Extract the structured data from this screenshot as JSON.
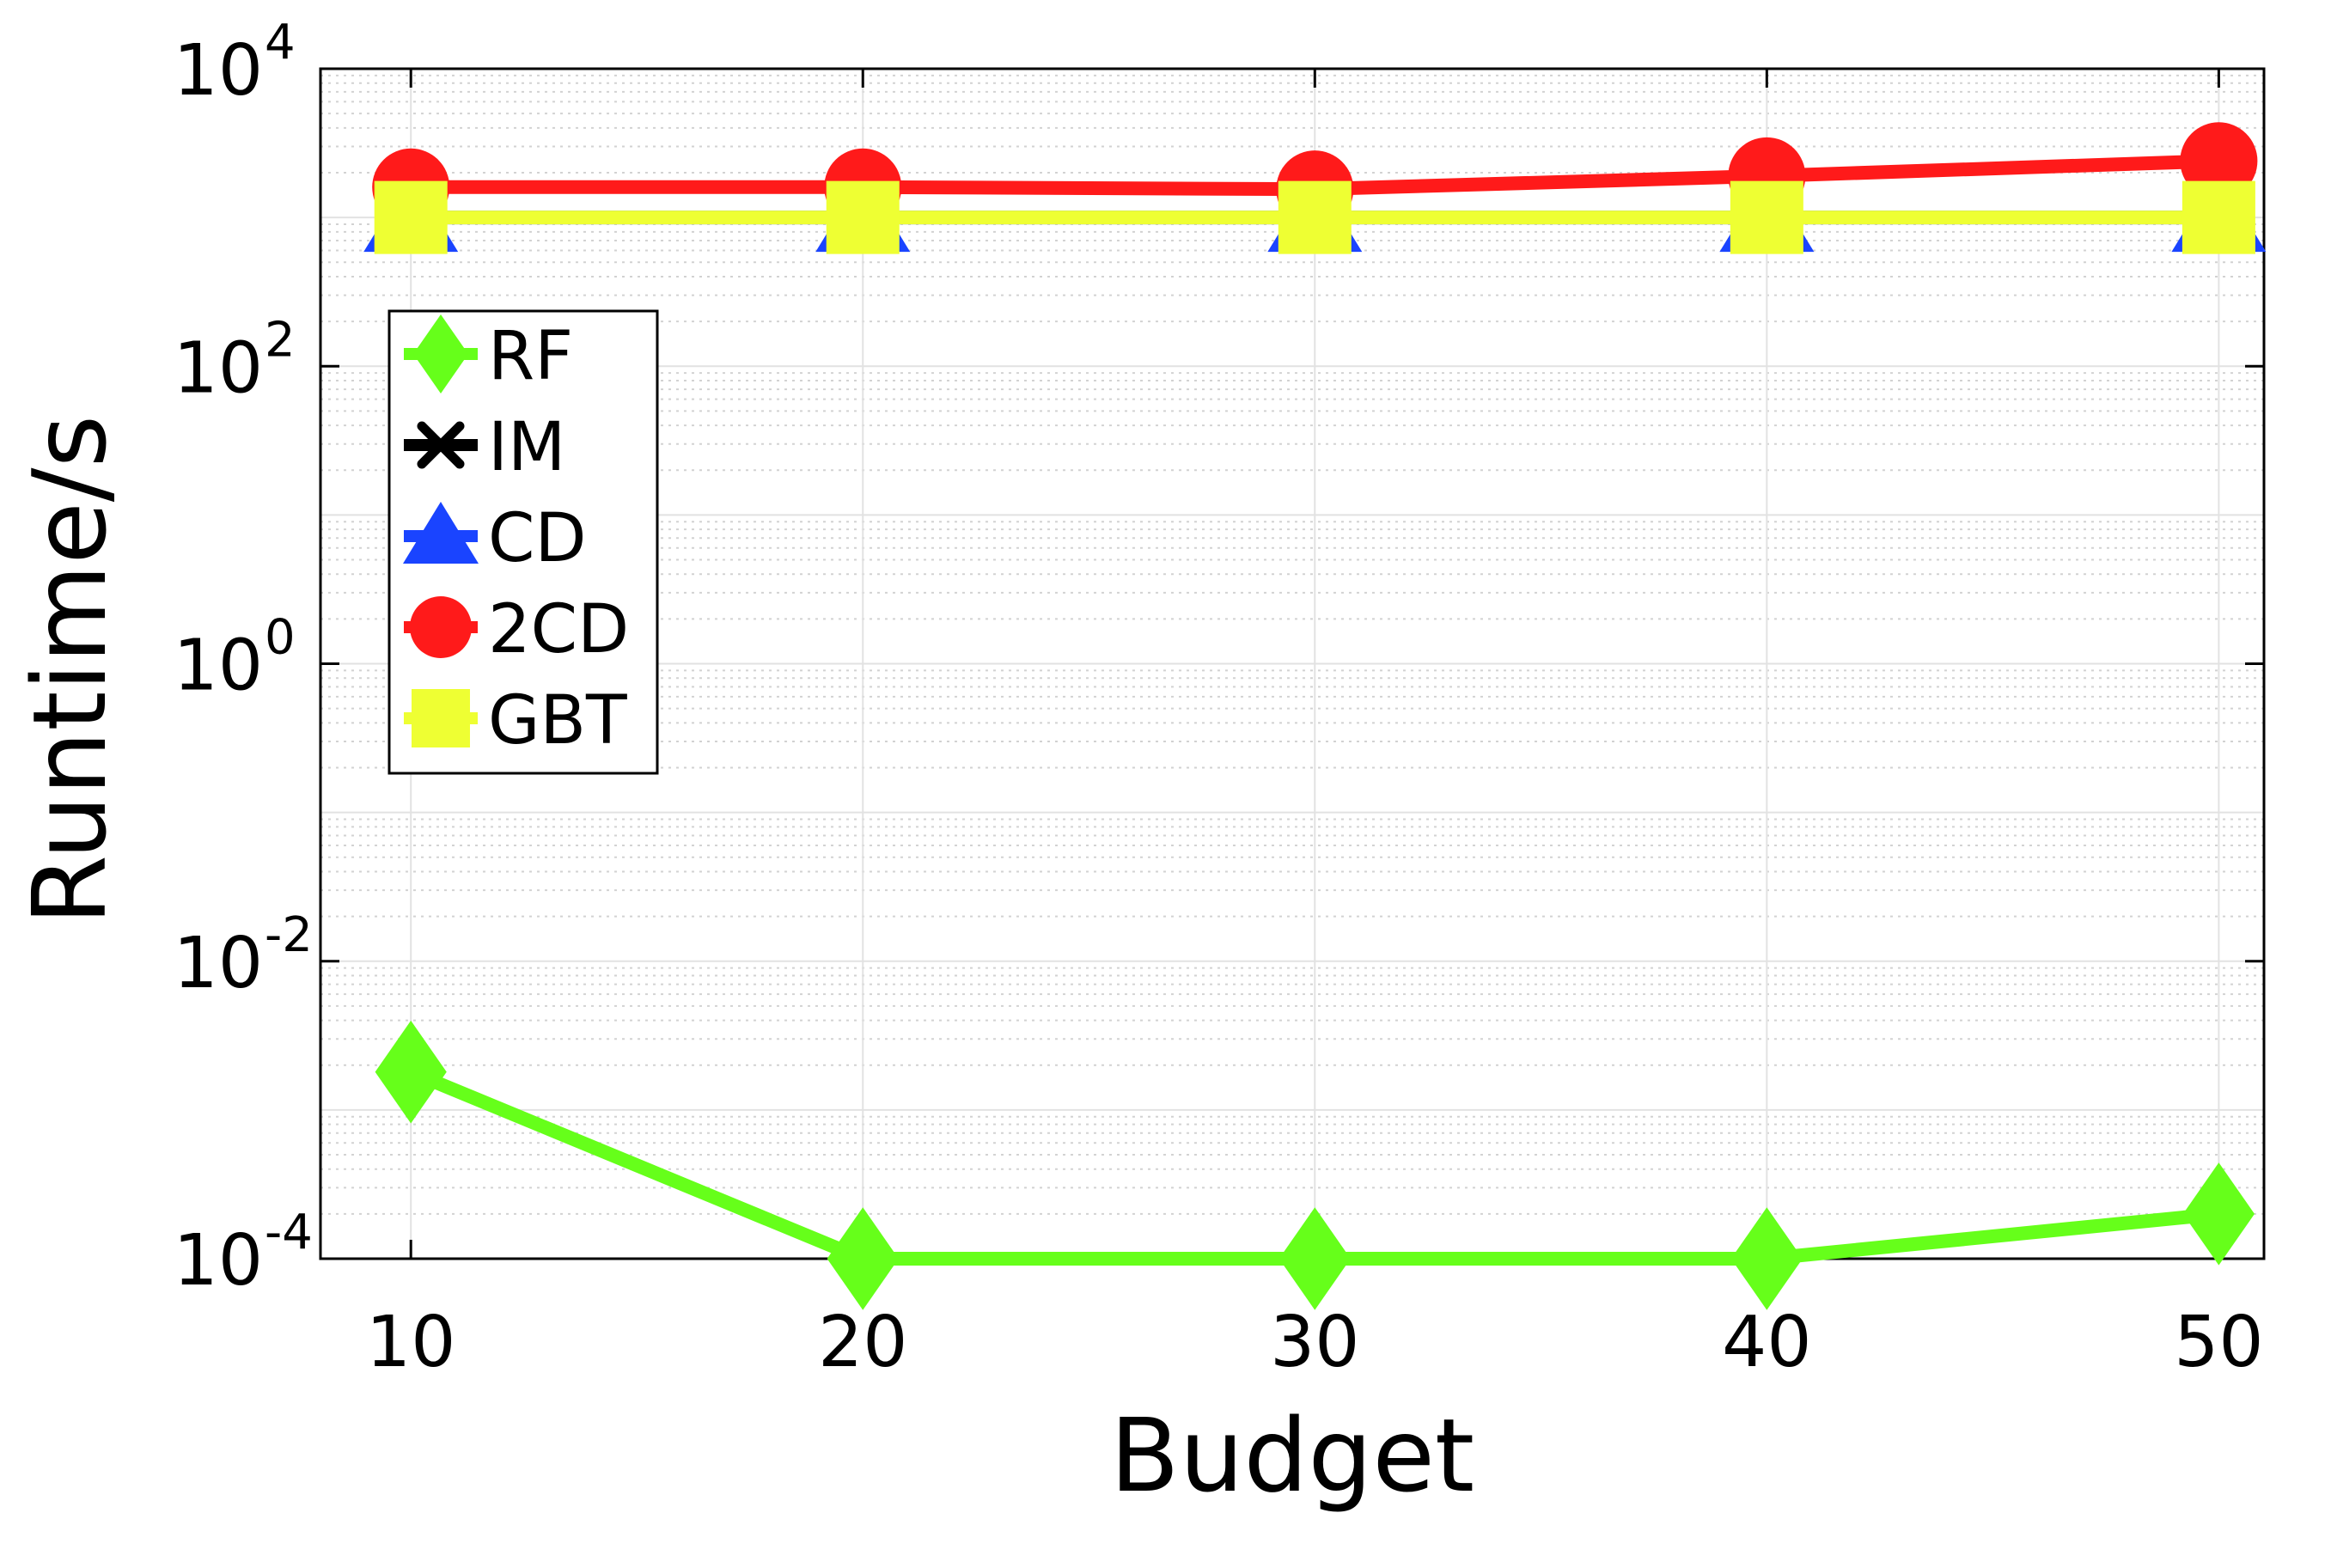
{
  "chart_data": {
    "type": "line",
    "xlabel": "Budget",
    "ylabel": "Runtime/s",
    "x": [
      10,
      20,
      30,
      40,
      50
    ],
    "xticks": [
      "10",
      "20",
      "30",
      "40",
      "50"
    ],
    "xlim": [
      8,
      51
    ],
    "y_scale": "log",
    "ylim": [
      0.0001,
      10000
    ],
    "yticks": [
      {
        "value": 0.0001,
        "base": "10",
        "exp": "-4"
      },
      {
        "value": 0.01,
        "base": "10",
        "exp": "-2"
      },
      {
        "value": 1,
        "base": "10",
        "exp": "0"
      },
      {
        "value": 100,
        "base": "10",
        "exp": "2"
      },
      {
        "value": 10000,
        "base": "10",
        "exp": "4"
      }
    ],
    "grid": true,
    "legend_position": "upper-left",
    "series": [
      {
        "name": "RF",
        "color": "#66ff1a",
        "marker": "diamond",
        "values": [
          0.0018,
          0.0001,
          0.0001,
          0.0001,
          0.0002
        ]
      },
      {
        "name": "IM",
        "color": "#000000",
        "marker": "asterisk",
        "values": [
          1000,
          1000,
          1000,
          1000,
          1000
        ]
      },
      {
        "name": "CD",
        "color": "#1a44ff",
        "marker": "triangle",
        "values": [
          1000,
          1000,
          1000,
          1000,
          1000
        ]
      },
      {
        "name": "2CD",
        "color": "#ff1a1a",
        "marker": "circle",
        "values": [
          1600,
          1600,
          1550,
          1900,
          2400
        ]
      },
      {
        "name": "GBT",
        "color": "#eeff33",
        "marker": "square",
        "values": [
          1000,
          1000,
          1000,
          1000,
          1000
        ]
      }
    ]
  }
}
